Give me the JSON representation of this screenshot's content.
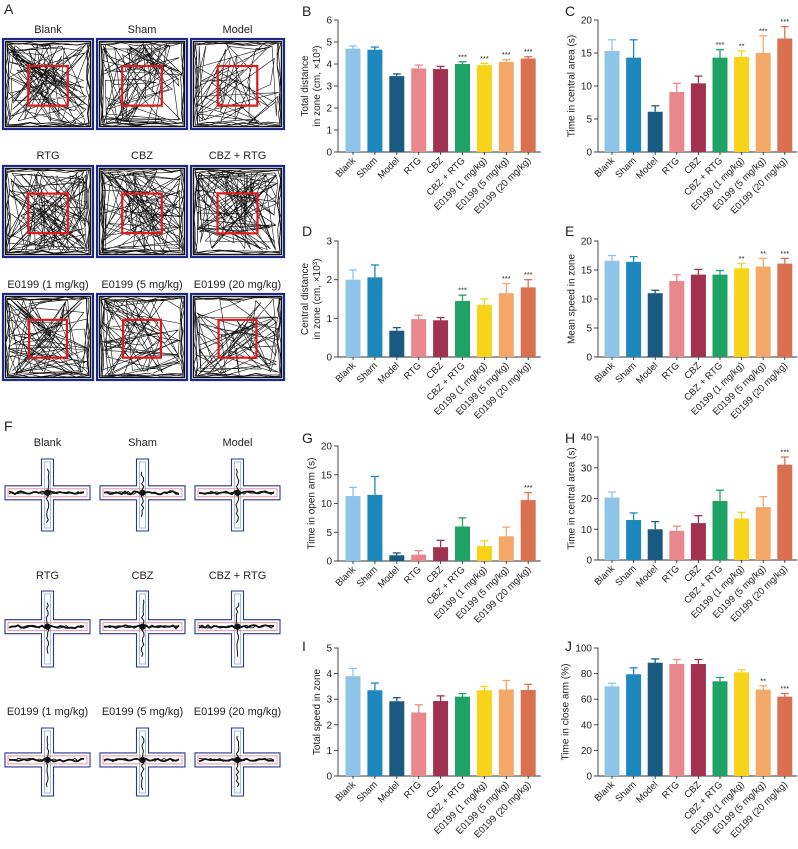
{
  "open_field": {
    "letter": "A",
    "groups": [
      "Blank",
      "Sham",
      "Model",
      "RTG",
      "CBZ",
      "CBZ + RTG",
      "E0199 (1 mg/kg)",
      "E0199 (5 mg/kg)",
      "E0199 (20 mg/kg)"
    ]
  },
  "plus_maze": {
    "letter": "F",
    "groups": [
      "Blank",
      "Sham",
      "Model",
      "RTG",
      "CBZ",
      "CBZ + RTG",
      "E0199 (1 mg/kg)",
      "E0199 (5 mg/kg)",
      "E0199 (20 mg/kg)"
    ]
  },
  "colors": {
    "bars": [
      "#8ec5e6",
      "#1c88bd",
      "#1b5a80",
      "#e8888c",
      "#a0314f",
      "#1ea364",
      "#f7d31a",
      "#f3a867",
      "#d97151"
    ],
    "arena_border": "#1b2a8a",
    "center_zone": "#e0191b",
    "maze_outline": "#27378c",
    "maze_inner_h": "#e58a9a",
    "maze_inner_v": "#9bb7d8",
    "track": "#111111"
  },
  "chart_data": [
    {
      "letter": "B",
      "type": "bar",
      "ylabel": [
        "Total distance",
        "in zone (cm, ×10³)"
      ],
      "categories": [
        "Blank",
        "Sham",
        "Model",
        "RTG",
        "CBZ",
        "CBZ + RTG",
        "E0199 (1 mg/kg)",
        "E0199 (5 mg/kg)",
        "E0199 (20 mg/kg)"
      ],
      "values": [
        4.7,
        4.65,
        3.45,
        3.8,
        3.77,
        4.0,
        3.95,
        4.1,
        4.25
      ],
      "errors": [
        0.12,
        0.12,
        0.1,
        0.15,
        0.12,
        0.1,
        0.08,
        0.1,
        0.08
      ],
      "significance": [
        "",
        "",
        "",
        "",
        "",
        "***",
        "***",
        "***",
        "***"
      ],
      "ylim": [
        0,
        6
      ],
      "yticks": [
        0,
        1,
        2,
        3,
        4,
        5,
        6
      ]
    },
    {
      "letter": "C",
      "type": "bar",
      "ylabel": [
        "Time in central area (s)"
      ],
      "categories": [
        "Blank",
        "Sham",
        "Model",
        "RTG",
        "CBZ",
        "CBZ + RTG",
        "E0199 (1 mg/kg)",
        "E0199 (5 mg/kg)",
        "E0199 (20 mg/kg)"
      ],
      "values": [
        15.3,
        14.3,
        6.1,
        9.1,
        10.4,
        14.3,
        14.4,
        15.0,
        17.2
      ],
      "errors": [
        1.7,
        2.7,
        0.9,
        1.3,
        1.1,
        1.2,
        0.9,
        2.6,
        1.8
      ],
      "significance": [
        "",
        "",
        "",
        "",
        "",
        "***",
        "**",
        "***",
        "***"
      ],
      "ylim": [
        0,
        20
      ],
      "yticks": [
        0,
        5,
        10,
        15,
        20
      ]
    },
    {
      "letter": "D",
      "type": "bar",
      "ylabel": [
        "Central distance",
        "in zone (cm, ×10³)"
      ],
      "categories": [
        "Blank",
        "Sham",
        "Model",
        "RTG",
        "CBZ",
        "CBZ + RTG",
        "E0199 (1 mg/kg)",
        "E0199 (5 mg/kg)",
        "E0199 (20 mg/kg)"
      ],
      "values": [
        2.0,
        2.06,
        0.68,
        0.98,
        0.95,
        1.45,
        1.35,
        1.65,
        1.8
      ],
      "errors": [
        0.25,
        0.32,
        0.08,
        0.1,
        0.07,
        0.15,
        0.15,
        0.25,
        0.2
      ],
      "significance": [
        "",
        "",
        "",
        "",
        "",
        "***",
        "",
        "***",
        "***"
      ],
      "ylim": [
        0,
        3
      ],
      "yticks": [
        0,
        1,
        2,
        3
      ]
    },
    {
      "letter": "E",
      "type": "bar",
      "ylabel": [
        "Mean speed in zone"
      ],
      "categories": [
        "Blank",
        "Sham",
        "Model",
        "RTG",
        "CBZ",
        "CBZ + RTG",
        "E0199 (1 mg/kg)",
        "E0199 (5 mg/kg)",
        "E0199 (20 mg/kg)"
      ],
      "values": [
        16.6,
        16.4,
        11.0,
        13.1,
        14.2,
        14.2,
        15.3,
        15.6,
        16.1
      ],
      "errors": [
        0.9,
        0.9,
        0.5,
        1.1,
        0.9,
        0.7,
        0.8,
        1.4,
        0.9
      ],
      "significance": [
        "",
        "",
        "",
        "",
        "",
        "",
        "**",
        "**",
        "***"
      ],
      "ylim": [
        0,
        20
      ],
      "yticks": [
        0,
        5,
        10,
        15,
        20
      ]
    },
    {
      "letter": "G",
      "type": "bar",
      "ylabel": [
        "Time in open arm (s)"
      ],
      "categories": [
        "Blank",
        "Sham",
        "Model",
        "RTG",
        "CBZ",
        "CBZ + RTG",
        "E0199 (1 mg/kg)",
        "E0199 (5 mg/kg)",
        "E0199 (20 mg/kg)"
      ],
      "values": [
        11.3,
        11.5,
        1.0,
        1.1,
        2.4,
        6.0,
        2.6,
        4.3,
        10.6
      ],
      "errors": [
        1.5,
        3.2,
        0.4,
        0.7,
        1.2,
        1.5,
        0.9,
        1.6,
        1.3
      ],
      "significance": [
        "",
        "",
        "",
        "",
        "",
        "",
        "",
        "",
        "***"
      ],
      "ylim": [
        0,
        20
      ],
      "yticks": [
        0,
        5,
        10,
        15,
        20
      ]
    },
    {
      "letter": "H",
      "type": "bar",
      "ylabel": [
        "Time in central area (s)"
      ],
      "categories": [
        "Blank",
        "Sham",
        "Model",
        "RTG",
        "CBZ",
        "CBZ + RTG",
        "E0199 (1 mg/kg)",
        "E0199 (5 mg/kg)",
        "E0199 (20 mg/kg)"
      ],
      "values": [
        20.3,
        13.0,
        10.0,
        9.5,
        12.0,
        19.2,
        13.5,
        17.2,
        31.0
      ],
      "errors": [
        1.8,
        2.3,
        2.5,
        1.5,
        2.4,
        3.5,
        2.0,
        3.4,
        2.5
      ],
      "significance": [
        "",
        "",
        "",
        "",
        "",
        "",
        "",
        "",
        "***"
      ],
      "ylim": [
        0,
        40
      ],
      "yticks": [
        0,
        10,
        20,
        30,
        40
      ]
    },
    {
      "letter": "I",
      "type": "bar",
      "ylabel": [
        "Total speed in zone"
      ],
      "categories": [
        "Blank",
        "Sham",
        "Model",
        "RTG",
        "CBZ",
        "CBZ + RTG",
        "E0199 (1 mg/kg)",
        "E0199 (5 mg/kg)",
        "E0199 (20 mg/kg)"
      ],
      "values": [
        3.9,
        3.35,
        2.92,
        2.48,
        2.93,
        3.1,
        3.35,
        3.38,
        3.36
      ],
      "errors": [
        0.3,
        0.28,
        0.14,
        0.3,
        0.2,
        0.12,
        0.15,
        0.35,
        0.22
      ],
      "significance": [
        "",
        "",
        "",
        "",
        "",
        "",
        "",
        "",
        ""
      ],
      "ylim": [
        0,
        5
      ],
      "yticks": [
        0,
        1,
        2,
        3,
        4,
        5
      ]
    },
    {
      "letter": "J",
      "type": "bar",
      "ylabel": [
        "Time in close arm (%)"
      ],
      "categories": [
        "Blank",
        "Sham",
        "Model",
        "RTG",
        "CBZ",
        "CBZ + RTG",
        "E0199 (1 mg/kg)",
        "E0199 (5 mg/kg)",
        "E0199 (20 mg/kg)"
      ],
      "values": [
        70,
        79.5,
        88.5,
        87.5,
        87.5,
        74,
        81,
        67.5,
        62
      ],
      "errors": [
        2.5,
        5.0,
        3.0,
        3.5,
        3.5,
        3.0,
        2.0,
        3.0,
        2.5
      ],
      "significance": [
        "",
        "",
        "",
        "",
        "",
        "",
        "",
        "**",
        "***"
      ],
      "ylim": [
        0,
        100
      ],
      "yticks": [
        0,
        20,
        40,
        60,
        80,
        100
      ]
    }
  ]
}
